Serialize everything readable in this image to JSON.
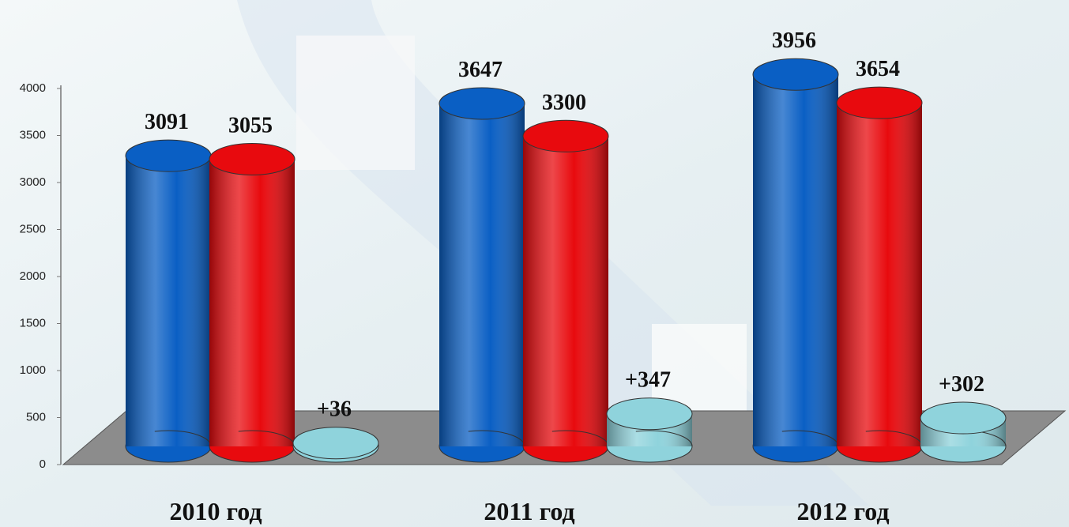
{
  "chart_data": {
    "type": "bar",
    "categories": [
      "2010 год",
      "2011 год",
      "2012 год"
    ],
    "series": [
      {
        "color": "#0a5fc4",
        "values": [
          3091,
          3647,
          3956
        ]
      },
      {
        "color": "#e80a0e",
        "values": [
          3055,
          3300,
          3654
        ]
      },
      {
        "color": "#8fd3dc",
        "values": [
          36,
          347,
          302
        ],
        "value_labels": [
          "+36",
          "+347",
          "+302"
        ]
      }
    ],
    "ylim": [
      0,
      4000
    ],
    "yticks": [
      0,
      500,
      1000,
      1500,
      2000,
      2500,
      3000,
      3500,
      4000
    ]
  }
}
